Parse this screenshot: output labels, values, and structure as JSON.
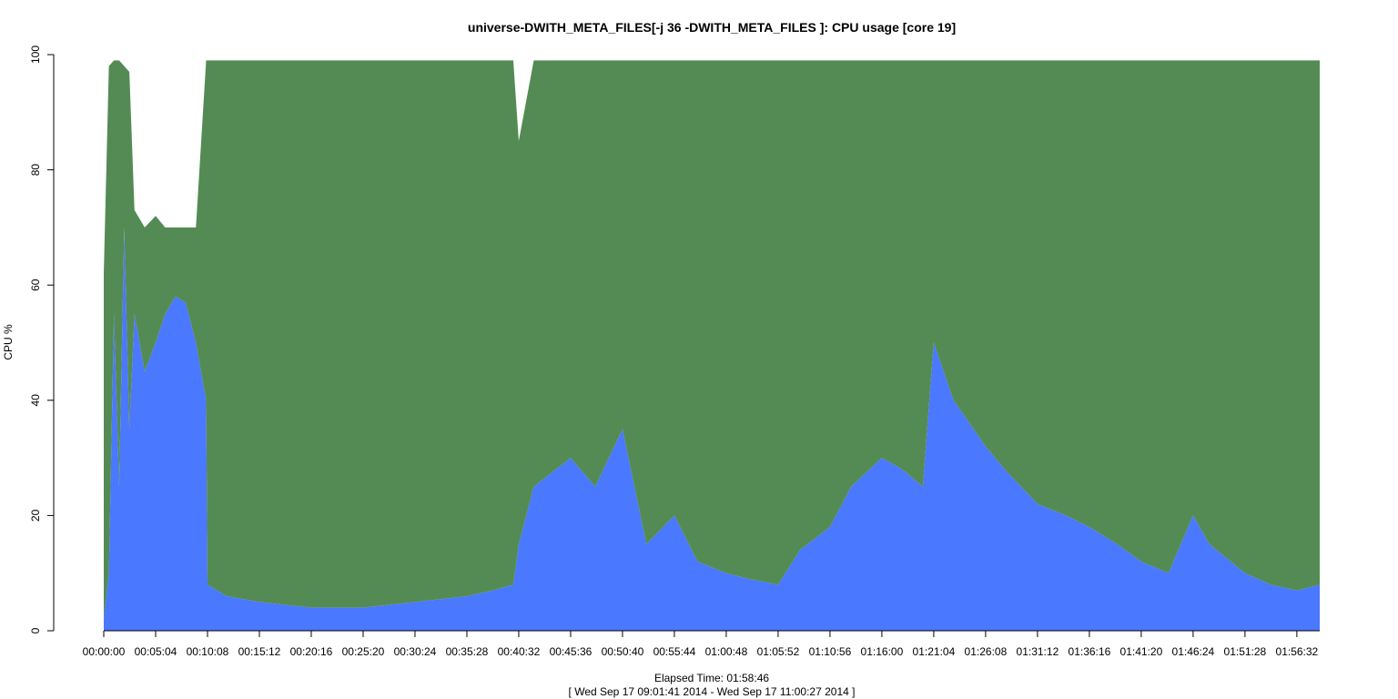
{
  "chart_data": {
    "type": "area",
    "title": "universe-DWITH_META_FILES[-j 36 -DWITH_META_FILES ]: CPU usage [core 19]",
    "ylabel": "CPU %",
    "xlabel": "Elapsed Time: 01:58:46",
    "subtitle": "[ Wed Sep 17 09:01:41 2014 - Wed Sep 17 11:00:27 2014 ]",
    "stacked": true,
    "grid": false,
    "legend": "none",
    "xlim_seconds": [
      0,
      7126
    ],
    "ylim": [
      0,
      100
    ],
    "y_ticks": [
      "0",
      "20",
      "40",
      "60",
      "80",
      "100"
    ],
    "x_ticks": [
      "00:00:00",
      "00:05:04",
      "00:10:08",
      "00:15:12",
      "00:20:16",
      "00:25:20",
      "00:30:24",
      "00:35:28",
      "00:40:32",
      "00:45:36",
      "00:50:40",
      "00:55:44",
      "01:00:48",
      "01:05:52",
      "01:10:56",
      "01:16:00",
      "01:21:04",
      "01:26:08",
      "01:31:12",
      "01:36:16",
      "01:41:20",
      "01:46:24",
      "01:51:28",
      "01:56:32"
    ],
    "x": [
      "00:00:00",
      "00:00:30",
      "00:01:00",
      "00:01:30",
      "00:02:00",
      "00:02:30",
      "00:03:00",
      "00:04:00",
      "00:05:04",
      "00:06:00",
      "00:07:00",
      "00:08:00",
      "00:09:00",
      "00:10:00",
      "00:10:08",
      "00:12:00",
      "00:15:12",
      "00:20:16",
      "00:25:20",
      "00:30:24",
      "00:35:28",
      "00:38:00",
      "00:40:00",
      "00:40:32",
      "00:42:00",
      "00:45:36",
      "00:48:00",
      "00:50:40",
      "00:53:00",
      "00:55:44",
      "00:58:00",
      "01:00:48",
      "01:03:00",
      "01:05:52",
      "01:08:00",
      "01:10:56",
      "01:13:00",
      "01:16:00",
      "01:18:00",
      "01:20:00",
      "01:21:04",
      "01:23:00",
      "01:26:08",
      "01:28:00",
      "01:31:12",
      "01:34:00",
      "01:36:16",
      "01:39:00",
      "01:41:20",
      "01:44:00",
      "01:46:24",
      "01:48:00",
      "01:51:28",
      "01:54:00",
      "01:56:32",
      "01:58:46"
    ],
    "series": [
      {
        "values": [
          2,
          10,
          55,
          25,
          70,
          35,
          55,
          45,
          50,
          55,
          58,
          57,
          50,
          40,
          8,
          6,
          5,
          4,
          4,
          5,
          6,
          7,
          8,
          15,
          25,
          30,
          25,
          35,
          15,
          20,
          12,
          10,
          9,
          8,
          14,
          18,
          25,
          30,
          28,
          25,
          50,
          40,
          32,
          28,
          22,
          20,
          18,
          15,
          12,
          10,
          20,
          15,
          10,
          8,
          7,
          8
        ]
      },
      {
        "values": [
          60,
          88,
          44,
          74,
          28,
          62,
          18,
          25,
          22,
          15,
          12,
          13,
          20,
          59,
          91,
          93,
          94,
          95,
          95,
          94,
          93,
          92,
          91,
          70,
          74,
          69,
          74,
          64,
          84,
          79,
          87,
          89,
          90,
          91,
          85,
          81,
          74,
          69,
          71,
          74,
          49,
          59,
          67,
          71,
          77,
          79,
          81,
          84,
          87,
          89,
          79,
          84,
          89,
          91,
          92,
          91
        ]
      }
    ],
    "colors": [
      "#4a78ff",
      "#548b54"
    ]
  }
}
